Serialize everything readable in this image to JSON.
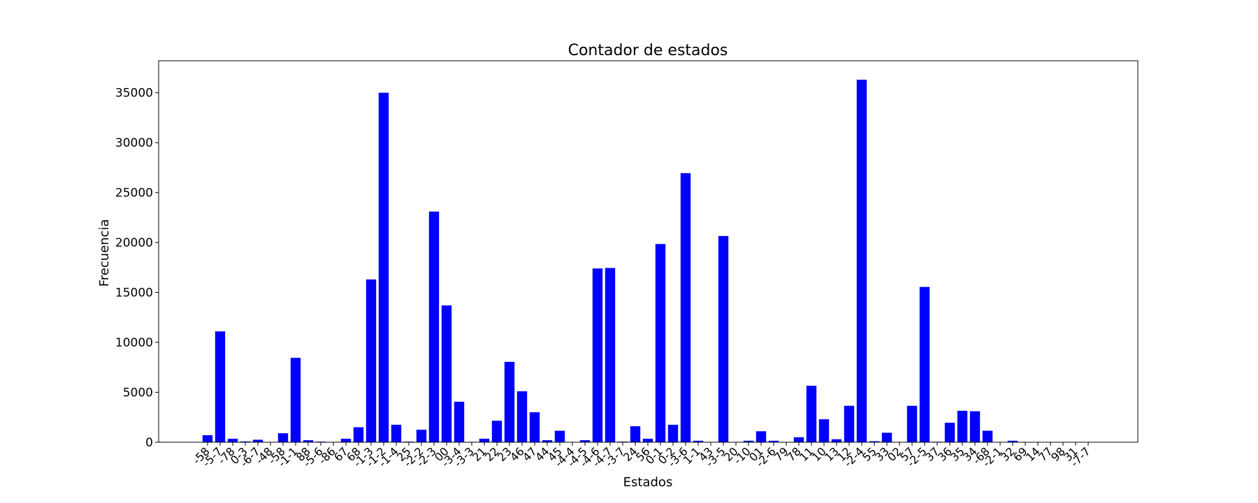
{
  "chart_data": {
    "type": "bar",
    "title": "Contador de estados",
    "xlabel": "Estados",
    "ylabel": "Frecuencia",
    "ylim": [
      0,
      38200
    ],
    "yticks": [
      0,
      5000,
      10000,
      15000,
      20000,
      25000,
      30000,
      35000
    ],
    "grid": false,
    "bar_color": "#0000ff",
    "categories": [
      "-58",
      "-5-7",
      "-78",
      "0-3",
      "-6-7",
      "-48",
      "-58",
      "-1-1",
      "88",
      "-5-6",
      "-86",
      "67",
      "68",
      "-1-3",
      "-1-2",
      "-1-4",
      "25",
      "-2-2",
      "-2-3",
      "00",
      "-3-4",
      "-3-3",
      "21",
      "22",
      "23",
      "46",
      "47",
      "44",
      "45",
      "-4-4",
      "-4-5",
      "-4-6",
      "-4-7",
      "-3-7",
      "24",
      "56",
      "0-1",
      "0-2",
      "-3-6",
      "1-1",
      "43",
      "-3-5",
      "20",
      "-10",
      "01",
      "-2-6",
      "79",
      "78",
      "11",
      "10",
      "13",
      "12",
      "-2-4",
      "55",
      "33",
      "02",
      "57",
      "-2-5",
      "37",
      "36",
      "35",
      "34",
      "-68",
      "-2-1",
      "32",
      "69",
      "14",
      "77",
      "98",
      "31",
      "-7-7"
    ],
    "values": [
      700,
      11100,
      350,
      80,
      250,
      20,
      900,
      8450,
      200,
      60,
      20,
      350,
      1500,
      16300,
      35000,
      1750,
      60,
      1250,
      23100,
      13700,
      4050,
      40,
      350,
      2150,
      8050,
      5100,
      3000,
      200,
      1150,
      30,
      200,
      17400,
      17450,
      60,
      1600,
      350,
      19850,
      1750,
      26950,
      150,
      20,
      20650,
      20,
      150,
      1100,
      150,
      10,
      500,
      5650,
      2300,
      300,
      3650,
      36300,
      100,
      950,
      20,
      3650,
      15550,
      50,
      1950,
      3150,
      3100,
      1150,
      10,
      150,
      5,
      5,
      5,
      5,
      5,
      5
    ]
  }
}
